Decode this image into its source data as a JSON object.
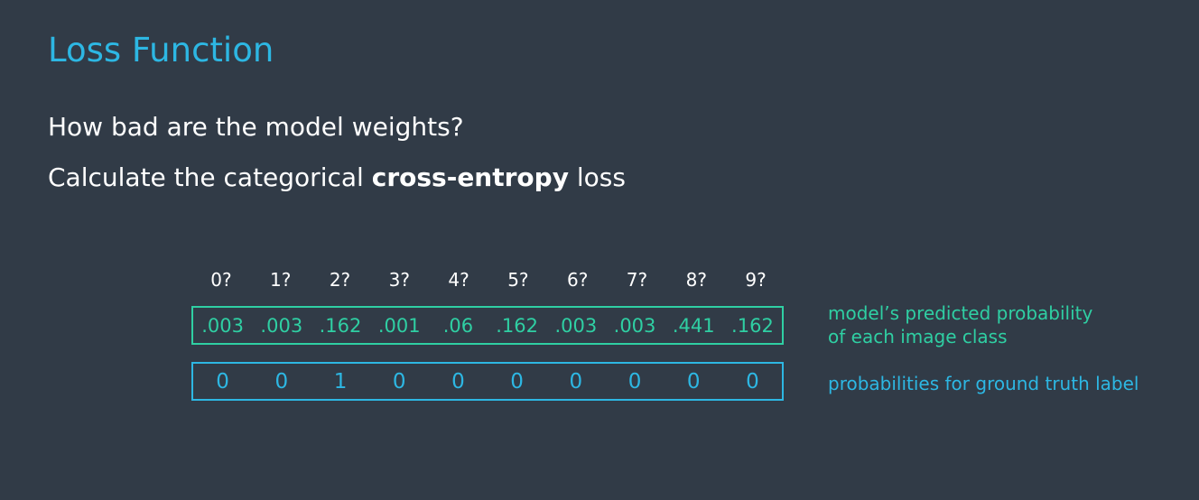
{
  "slide": {
    "title": "Loss Function",
    "question": "How bad are the model weights?",
    "calc_prefix": "Calculate the categorical ",
    "calc_bold": "cross-entropy",
    "calc_suffix": " loss"
  },
  "class_labels": [
    "0?",
    "1?",
    "2?",
    "3?",
    "4?",
    "5?",
    "6?",
    "7?",
    "8?",
    "9?"
  ],
  "predicted": [
    ".003",
    ".003",
    ".162",
    ".001",
    ".06",
    ".162",
    ".003",
    ".003",
    ".441",
    ".162"
  ],
  "ground_truth": [
    "0",
    "0",
    "1",
    "0",
    "0",
    "0",
    "0",
    "0",
    "0",
    "0"
  ],
  "annotations": {
    "predicted_line1": "model’s predicted probability",
    "predicted_line2": "of each image class",
    "ground_truth": "probabilities for ground truth label"
  },
  "colors": {
    "background": "#313b47",
    "title": "#2db7e3",
    "predicted": "#2fcfa3",
    "ground_truth": "#2db7e3",
    "text": "#ffffff"
  }
}
